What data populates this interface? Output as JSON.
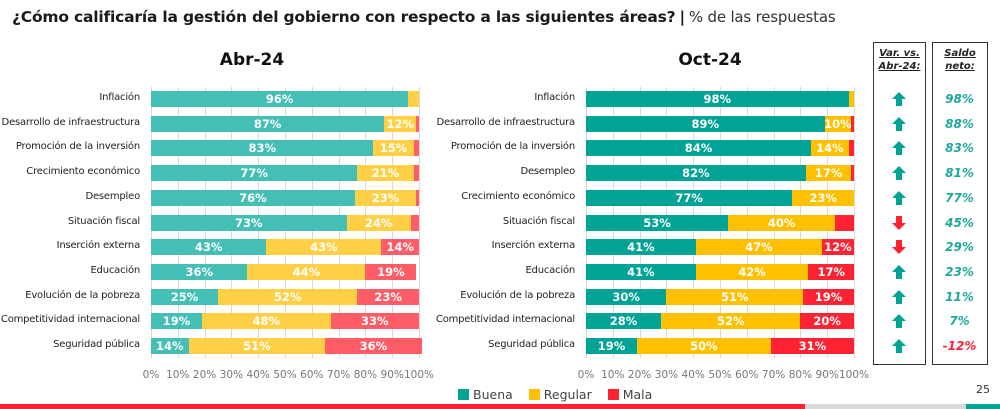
{
  "header": {
    "question": "¿Cómo calificaría la gestión del gobierno con respecto a las siguientes áreas?",
    "separator": "|",
    "subtitle": "% de las respuestas"
  },
  "side_columns": {
    "variation_header_line1": "Var. vs.",
    "variation_header_line2": "Abr-24:",
    "net_header_line1": "Saldo",
    "net_header_line2": "neto:"
  },
  "legend": [
    {
      "label": "Buena",
      "color": "#00A396"
    },
    {
      "label": "Regular",
      "color": "#FFC000"
    },
    {
      "label": "Mala",
      "color": "#FF2233"
    }
  ],
  "page_number": "25",
  "chart_data": [
    {
      "type": "bar",
      "orientation": "horizontal",
      "stacked": true,
      "title": "Abr-24",
      "categories": [
        "Inflación",
        "Desarrollo de infraestructura",
        "Promoción de la inversión",
        "Crecimiento económico",
        "Desempleo",
        "Situación fiscal",
        "Inserción externa",
        "Educación",
        "Evolución de la pobreza",
        "Competitividad internacional",
        "Seguridad pública"
      ],
      "series": [
        {
          "name": "Buena",
          "color": "#43BFB5",
          "values": [
            96,
            87,
            83,
            77,
            76,
            73,
            43,
            36,
            25,
            19,
            14
          ]
        },
        {
          "name": "Regular",
          "color": "#FFD045",
          "values": [
            4,
            12,
            15,
            21,
            23,
            24,
            43,
            44,
            52,
            48,
            51
          ]
        },
        {
          "name": "Mala",
          "color": "#FF5C67",
          "values": [
            0,
            1,
            2,
            2,
            1,
            3,
            14,
            19,
            23,
            33,
            36
          ]
        }
      ],
      "data_labels": [
        [
          "96%",
          null,
          null
        ],
        [
          "87%",
          "12%",
          null
        ],
        [
          "83%",
          "15%",
          null
        ],
        [
          "77%",
          "21%",
          null
        ],
        [
          "76%",
          "23%",
          null
        ],
        [
          "73%",
          "24%",
          null
        ],
        [
          "43%",
          "43%",
          "14%"
        ],
        [
          "36%",
          "44%",
          "19%"
        ],
        [
          "25%",
          "52%",
          "23%"
        ],
        [
          "19%",
          "48%",
          "33%"
        ],
        [
          "14%",
          "51%",
          "36%"
        ]
      ],
      "xlim": [
        0,
        100
      ],
      "xticks": [
        "0%",
        "10%",
        "20%",
        "30%",
        "40%",
        "50%",
        "60%",
        "70%",
        "80%",
        "90%",
        "100%"
      ],
      "grid": true
    },
    {
      "type": "bar",
      "orientation": "horizontal",
      "stacked": true,
      "title": "Oct-24",
      "categories": [
        "Inflación",
        "Desarrollo de infraestructura",
        "Promoción de la inversión",
        "Desempleo",
        "Crecimiento económico",
        "Situación fiscal",
        "Inserción externa",
        "Educación",
        "Evolución de la pobreza",
        "Competitividad internacional",
        "Seguridad pública"
      ],
      "series": [
        {
          "name": "Buena",
          "color": "#00A396",
          "values": [
            98,
            89,
            84,
            82,
            77,
            53,
            41,
            41,
            30,
            28,
            19
          ]
        },
        {
          "name": "Regular",
          "color": "#FFC000",
          "values": [
            2,
            10,
            14,
            17,
            23,
            40,
            47,
            42,
            51,
            52,
            50
          ]
        },
        {
          "name": "Mala",
          "color": "#FF2233",
          "values": [
            0,
            1,
            2,
            1,
            0,
            7,
            12,
            17,
            19,
            20,
            31
          ]
        }
      ],
      "data_labels": [
        [
          "98%",
          null,
          null
        ],
        [
          "89%",
          "10%",
          null
        ],
        [
          "84%",
          "14%",
          null
        ],
        [
          "82%",
          "17%",
          null
        ],
        [
          "77%",
          "23%",
          null
        ],
        [
          "53%",
          "40%",
          null
        ],
        [
          "41%",
          "47%",
          "12%"
        ],
        [
          "41%",
          "42%",
          "17%"
        ],
        [
          "30%",
          "51%",
          "19%"
        ],
        [
          "28%",
          "52%",
          "20%"
        ],
        [
          "19%",
          "50%",
          "31%"
        ]
      ],
      "xlim": [
        0,
        100
      ],
      "xticks": [
        "0%",
        "10%",
        "20%",
        "30%",
        "40%",
        "50%",
        "60%",
        "70%",
        "80%",
        "90%",
        "100%"
      ],
      "grid": true
    },
    {
      "type": "table",
      "title": "Var. vs. Abr-24 / Saldo neto",
      "categories": [
        "Inflación",
        "Desarrollo de infraestructura",
        "Promoción de la inversión",
        "Desempleo",
        "Crecimiento económico",
        "Situación fiscal",
        "Inserción externa",
        "Educación",
        "Evolución de la pobreza",
        "Competitividad internacional",
        "Seguridad pública"
      ],
      "variation": [
        "up",
        "up",
        "up",
        "up",
        "up",
        "down",
        "down",
        "up",
        "up",
        "up",
        "up"
      ],
      "net_balance": [
        "98%",
        "88%",
        "83%",
        "81%",
        "77%",
        "45%",
        "29%",
        "23%",
        "11%",
        "7%",
        "-12%"
      ],
      "colors": {
        "up": "#00A396",
        "down": "#FF2233",
        "positive": "#1FA79B",
        "negative": "#FF2233"
      }
    }
  ]
}
